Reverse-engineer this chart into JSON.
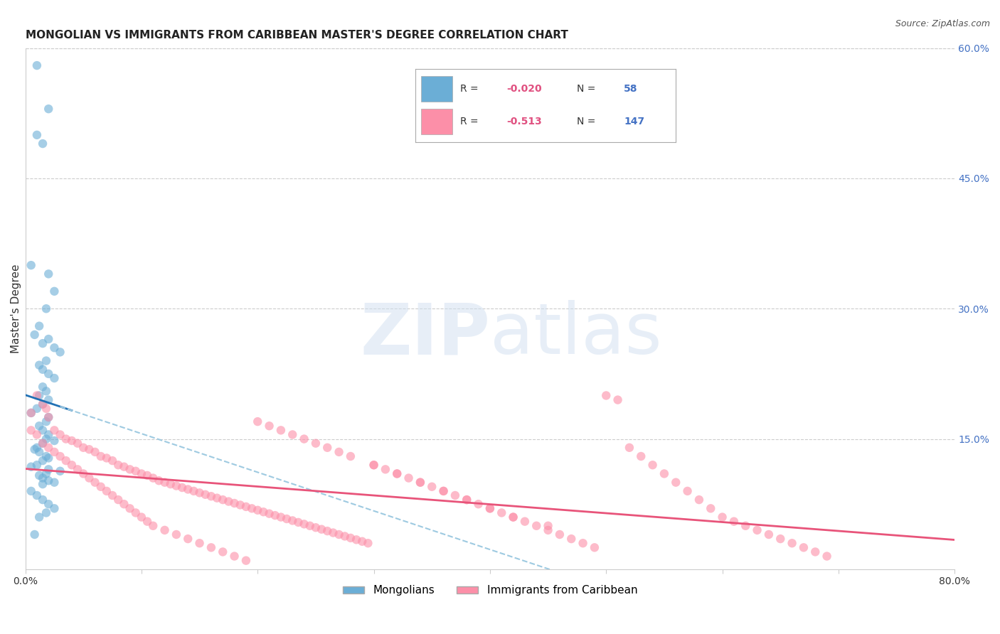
{
  "title": "MONGOLIAN VS IMMIGRANTS FROM CARIBBEAN MASTER'S DEGREE CORRELATION CHART",
  "source": "Source: ZipAtlas.com",
  "ylabel": "Master's Degree",
  "xlabel": "",
  "xlim": [
    0.0,
    0.8
  ],
  "ylim": [
    0.0,
    0.6
  ],
  "xticks": [
    0.0,
    0.1,
    0.2,
    0.3,
    0.4,
    0.5,
    0.6,
    0.7,
    0.8
  ],
  "xticklabels": [
    "0.0%",
    "",
    "",
    "",
    "",
    "",
    "",
    "",
    "80.0%"
  ],
  "yticks_right": [
    0.15,
    0.3,
    0.45,
    0.6
  ],
  "ytick_right_labels": [
    "15.0%",
    "30.0%",
    "45.0%",
    "60.0%"
  ],
  "blue_R": -0.02,
  "blue_N": 58,
  "pink_R": -0.513,
  "pink_N": 147,
  "blue_color": "#6baed6",
  "pink_color": "#fc8fa8",
  "blue_line_color": "#2171b5",
  "pink_line_color": "#e8547a",
  "blue_dashed_color": "#9ecae1",
  "background_color": "#ffffff",
  "grid_color": "#cccccc",
  "watermark": "ZIPAtlas",
  "title_fontsize": 11,
  "legend_fontsize": 11,
  "axis_label_fontsize": 11,
  "tick_fontsize": 10,
  "blue_scatter_x": [
    0.01,
    0.02,
    0.01,
    0.015,
    0.005,
    0.02,
    0.025,
    0.018,
    0.012,
    0.008,
    0.015,
    0.02,
    0.025,
    0.03,
    0.018,
    0.012,
    0.015,
    0.02,
    0.025,
    0.015,
    0.018,
    0.012,
    0.02,
    0.015,
    0.01,
    0.005,
    0.02,
    0.018,
    0.012,
    0.015,
    0.02,
    0.018,
    0.025,
    0.015,
    0.01,
    0.008,
    0.012,
    0.018,
    0.02,
    0.015,
    0.01,
    0.005,
    0.02,
    0.03,
    0.018,
    0.012,
    0.015,
    0.02,
    0.025,
    0.015,
    0.005,
    0.01,
    0.015,
    0.02,
    0.025,
    0.018,
    0.012,
    0.008
  ],
  "blue_scatter_y": [
    0.58,
    0.53,
    0.5,
    0.49,
    0.35,
    0.34,
    0.32,
    0.3,
    0.28,
    0.27,
    0.26,
    0.265,
    0.255,
    0.25,
    0.24,
    0.235,
    0.23,
    0.225,
    0.22,
    0.21,
    0.205,
    0.2,
    0.195,
    0.19,
    0.185,
    0.18,
    0.175,
    0.17,
    0.165,
    0.16,
    0.155,
    0.15,
    0.148,
    0.145,
    0.14,
    0.138,
    0.135,
    0.13,
    0.128,
    0.125,
    0.12,
    0.118,
    0.115,
    0.113,
    0.11,
    0.108,
    0.105,
    0.102,
    0.1,
    0.098,
    0.09,
    0.085,
    0.08,
    0.075,
    0.07,
    0.065,
    0.06,
    0.04
  ],
  "pink_scatter_x": [
    0.005,
    0.01,
    0.015,
    0.018,
    0.02,
    0.025,
    0.03,
    0.035,
    0.04,
    0.045,
    0.05,
    0.055,
    0.06,
    0.065,
    0.07,
    0.075,
    0.08,
    0.085,
    0.09,
    0.095,
    0.1,
    0.105,
    0.11,
    0.115,
    0.12,
    0.125,
    0.13,
    0.135,
    0.14,
    0.145,
    0.15,
    0.155,
    0.16,
    0.165,
    0.17,
    0.175,
    0.18,
    0.185,
    0.19,
    0.195,
    0.2,
    0.205,
    0.21,
    0.215,
    0.22,
    0.225,
    0.23,
    0.235,
    0.24,
    0.245,
    0.25,
    0.255,
    0.26,
    0.265,
    0.27,
    0.275,
    0.28,
    0.285,
    0.29,
    0.295,
    0.3,
    0.31,
    0.32,
    0.33,
    0.34,
    0.35,
    0.36,
    0.37,
    0.38,
    0.39,
    0.4,
    0.41,
    0.42,
    0.43,
    0.44,
    0.45,
    0.46,
    0.47,
    0.48,
    0.49,
    0.5,
    0.51,
    0.52,
    0.53,
    0.54,
    0.55,
    0.56,
    0.57,
    0.58,
    0.59,
    0.6,
    0.61,
    0.62,
    0.63,
    0.64,
    0.65,
    0.66,
    0.67,
    0.68,
    0.69,
    0.005,
    0.01,
    0.015,
    0.02,
    0.025,
    0.03,
    0.035,
    0.04,
    0.045,
    0.05,
    0.055,
    0.06,
    0.065,
    0.07,
    0.075,
    0.08,
    0.085,
    0.09,
    0.095,
    0.1,
    0.105,
    0.11,
    0.12,
    0.13,
    0.14,
    0.15,
    0.16,
    0.17,
    0.18,
    0.19,
    0.2,
    0.21,
    0.22,
    0.23,
    0.24,
    0.25,
    0.26,
    0.27,
    0.28,
    0.3,
    0.32,
    0.34,
    0.36,
    0.38,
    0.4,
    0.42,
    0.45
  ],
  "pink_scatter_y": [
    0.18,
    0.2,
    0.19,
    0.185,
    0.175,
    0.16,
    0.155,
    0.15,
    0.148,
    0.145,
    0.14,
    0.138,
    0.135,
    0.13,
    0.128,
    0.125,
    0.12,
    0.118,
    0.115,
    0.113,
    0.11,
    0.108,
    0.105,
    0.102,
    0.1,
    0.098,
    0.096,
    0.094,
    0.092,
    0.09,
    0.088,
    0.086,
    0.084,
    0.082,
    0.08,
    0.078,
    0.076,
    0.074,
    0.072,
    0.07,
    0.068,
    0.066,
    0.064,
    0.062,
    0.06,
    0.058,
    0.056,
    0.054,
    0.052,
    0.05,
    0.048,
    0.046,
    0.044,
    0.042,
    0.04,
    0.038,
    0.036,
    0.034,
    0.032,
    0.03,
    0.12,
    0.115,
    0.11,
    0.105,
    0.1,
    0.095,
    0.09,
    0.085,
    0.08,
    0.075,
    0.07,
    0.065,
    0.06,
    0.055,
    0.05,
    0.045,
    0.04,
    0.035,
    0.03,
    0.025,
    0.2,
    0.195,
    0.14,
    0.13,
    0.12,
    0.11,
    0.1,
    0.09,
    0.08,
    0.07,
    0.06,
    0.055,
    0.05,
    0.045,
    0.04,
    0.035,
    0.03,
    0.025,
    0.02,
    0.015,
    0.16,
    0.155,
    0.145,
    0.14,
    0.135,
    0.13,
    0.125,
    0.12,
    0.115,
    0.11,
    0.105,
    0.1,
    0.095,
    0.09,
    0.085,
    0.08,
    0.075,
    0.07,
    0.065,
    0.06,
    0.055,
    0.05,
    0.045,
    0.04,
    0.035,
    0.03,
    0.025,
    0.02,
    0.015,
    0.01,
    0.17,
    0.165,
    0.16,
    0.155,
    0.15,
    0.145,
    0.14,
    0.135,
    0.13,
    0.12,
    0.11,
    0.1,
    0.09,
    0.08,
    0.07,
    0.06,
    0.05
  ]
}
